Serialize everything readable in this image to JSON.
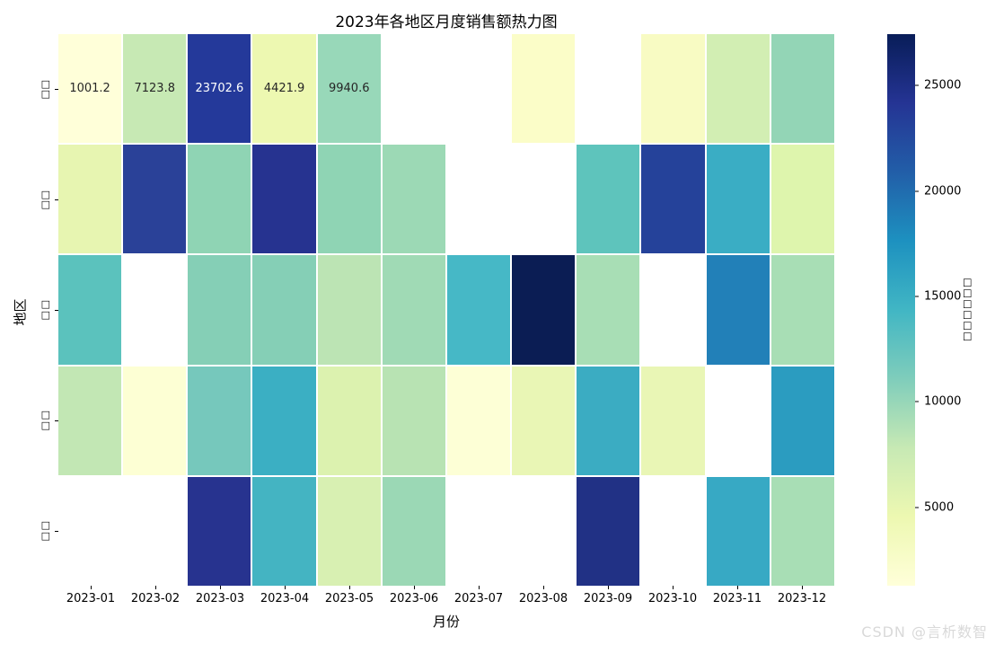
{
  "title": "2023年各地区月度销售额热力图",
  "watermark": "CSDN @言析数智",
  "chart_data": {
    "type": "heatmap",
    "title": "2023年各地区月度销售额热力图",
    "xlabel": "月份",
    "ylabel": "地区",
    "x_labels": [
      "2023-01",
      "2023-02",
      "2023-03",
      "2023-04",
      "2023-05",
      "2023-06",
      "2023-07",
      "2023-08",
      "2023-09",
      "2023-10",
      "2023-11",
      "2023-12"
    ],
    "y_labels": [
      "□□",
      "□□",
      "□□",
      "□□",
      "□□"
    ],
    "y_labels_note": "region names render as missing-glyph boxes in the screenshot",
    "colorbar": {
      "label_display": "□□□□□□",
      "ticks": [
        25000,
        20000,
        15000,
        10000,
        5000
      ],
      "vmin": 1280,
      "vmax": 27440,
      "colormap": "YlGnBu",
      "stops": [
        "#081d58",
        "#253494",
        "#225ea8",
        "#1d91c0",
        "#41b6c4",
        "#7fcdbb",
        "#c7e9b4",
        "#edf8b1",
        "#ffffd9"
      ]
    },
    "grid_gap_color": "#ffffff",
    "missing_cell_color": "#ffffff",
    "cells": {
      "colors": [
        [
          "#ffffd9",
          "#c7e9b4",
          "#24399a",
          "#edf8b1",
          "#98d8b9",
          null,
          null,
          "#fbfdc8",
          null,
          "#f8fbc3",
          "#d2eeb3",
          "#93d5b6"
        ],
        [
          "#e7f5b1",
          "#2a4198",
          "#8fd4b4",
          "#263390",
          "#8fd4b4",
          "#9cd9b5",
          null,
          null,
          "#5ec4bc",
          "#25429a",
          "#3aadc4",
          "#def5ad"
        ],
        [
          "#5bc2bd",
          null,
          "#85cfb6",
          "#85cfb6",
          "#bce4b4",
          "#a0dab5",
          "#46b8c6",
          "#0b1d54",
          "#a8deb5",
          null,
          "#2280b8",
          "#a8deb5"
        ],
        [
          "#c2e7b4",
          "#fdffd4",
          "#76c8bc",
          "#3bafc3",
          "#dcf2af",
          "#b8e3b3",
          "#fdffd6",
          "#e9f6b5",
          "#3bacc2",
          "#e9f6b5",
          null,
          "#2b9cc0"
        ],
        [
          null,
          null,
          "#27338f",
          "#44b4c2",
          "#d8f0b2",
          "#9bd8b5",
          null,
          null,
          "#213185",
          null,
          "#37a9c4",
          "#a8deb5"
        ]
      ],
      "values_est": [
        [
          1001.2,
          7123.8,
          23702.6,
          4421.9,
          9940.6,
          null,
          null,
          3100,
          null,
          3700,
          6600,
          10300
        ],
        [
          5000,
          23500,
          10500,
          24600,
          10500,
          10000,
          null,
          null,
          12700,
          23300,
          15600,
          5500
        ],
        [
          12900,
          null,
          10800,
          10800,
          8200,
          9700,
          14800,
          27400,
          9200,
          null,
          18500,
          9200
        ],
        [
          7600,
          1500,
          11600,
          15300,
          5800,
          8400,
          1500,
          4700,
          15600,
          4700,
          null,
          16900
        ],
        [
          null,
          null,
          24300,
          15000,
          6000,
          10000,
          null,
          null,
          24900,
          null,
          15800,
          9200
        ]
      ],
      "annotations": [
        {
          "row": 0,
          "col": 0,
          "text": "1001.2",
          "text_color": "#262626"
        },
        {
          "row": 0,
          "col": 1,
          "text": "7123.8",
          "text_color": "#262626"
        },
        {
          "row": 0,
          "col": 2,
          "text": "23702.6",
          "text_color": "#ffffff"
        },
        {
          "row": 0,
          "col": 3,
          "text": "4421.9",
          "text_color": "#262626"
        },
        {
          "row": 0,
          "col": 4,
          "text": "9940.6",
          "text_color": "#262626"
        }
      ]
    }
  }
}
